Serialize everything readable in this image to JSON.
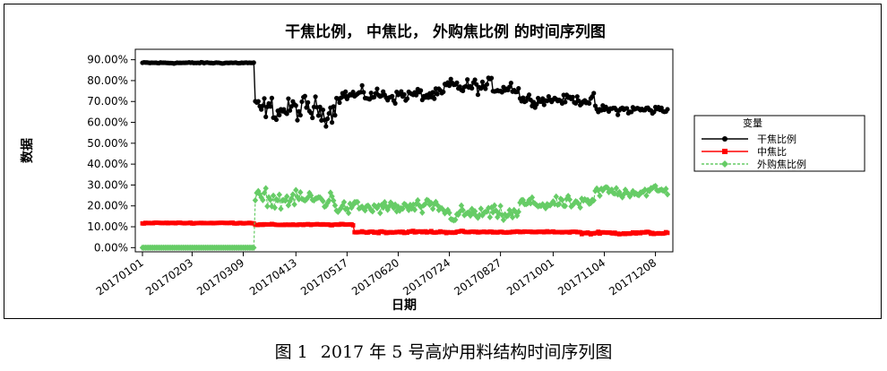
{
  "figure": {
    "caption_number": "图 1",
    "caption_text": "2017 年 5 号高炉用料结构时间序列图"
  },
  "chart_data": {
    "type": "line",
    "title": "干焦比例， 中焦比， 外购焦比例  的时间序列图",
    "xlabel": "日期",
    "ylabel": "数据",
    "ylim": [
      -0.02,
      0.95
    ],
    "y_ticks": [
      "90.00%",
      "80.00%",
      "70.00%",
      "60.00%",
      "50.00%",
      "40.00%",
      "30.00%",
      "20.00%",
      "10.00%",
      "0.00%"
    ],
    "y_tick_values": [
      0.9,
      0.8,
      0.7,
      0.6,
      0.5,
      0.4,
      0.3,
      0.2,
      0.1,
      0.0
    ],
    "x_ticks": [
      "20170101",
      "20170203",
      "20170309",
      "20170413",
      "20170517",
      "20170620",
      "20170724",
      "20170827",
      "20171001",
      "20171104",
      "20171208"
    ],
    "x_tick_index": [
      0,
      33,
      67,
      102,
      136,
      170,
      204,
      238,
      273,
      307,
      341
    ],
    "n_points": 350,
    "legend": {
      "title": "变量",
      "position": "right",
      "entries": [
        "干焦比例",
        "中焦比",
        "外购焦比例"
      ]
    },
    "series": [
      {
        "name": "干焦比例",
        "color": "#000000",
        "marker": "circle",
        "segments": [
          {
            "start": 0,
            "end": 74,
            "mean": 0.885,
            "noise": 0.004
          },
          {
            "start": 75,
            "end": 128,
            "mean": 0.66,
            "noise": 0.08
          },
          {
            "start": 129,
            "end": 200,
            "mean": 0.73,
            "noise": 0.045
          },
          {
            "start": 201,
            "end": 250,
            "mean": 0.77,
            "noise": 0.05
          },
          {
            "start": 251,
            "end": 300,
            "mean": 0.71,
            "noise": 0.035
          },
          {
            "start": 301,
            "end": 349,
            "mean": 0.66,
            "noise": 0.03
          }
        ]
      },
      {
        "name": "中焦比",
        "color": "#ff0000",
        "marker": "square",
        "segments": [
          {
            "start": 0,
            "end": 74,
            "mean": 0.118,
            "noise": 0.003
          },
          {
            "start": 75,
            "end": 140,
            "mean": 0.11,
            "noise": 0.004
          },
          {
            "start": 141,
            "end": 220,
            "mean": 0.075,
            "noise": 0.007
          },
          {
            "start": 221,
            "end": 290,
            "mean": 0.075,
            "noise": 0.004
          },
          {
            "start": 291,
            "end": 349,
            "mean": 0.07,
            "noise": 0.008
          }
        ]
      },
      {
        "name": "外购焦比例",
        "color": "#66cc66",
        "marker": "diamond",
        "segments": [
          {
            "start": 0,
            "end": 74,
            "mean": 0.0,
            "noise": 0.0
          },
          {
            "start": 75,
            "end": 128,
            "mean": 0.23,
            "noise": 0.06
          },
          {
            "start": 129,
            "end": 200,
            "mean": 0.19,
            "noise": 0.045
          },
          {
            "start": 201,
            "end": 250,
            "mean": 0.16,
            "noise": 0.05
          },
          {
            "start": 251,
            "end": 300,
            "mean": 0.21,
            "noise": 0.04
          },
          {
            "start": 301,
            "end": 349,
            "mean": 0.27,
            "noise": 0.04
          }
        ]
      }
    ]
  }
}
